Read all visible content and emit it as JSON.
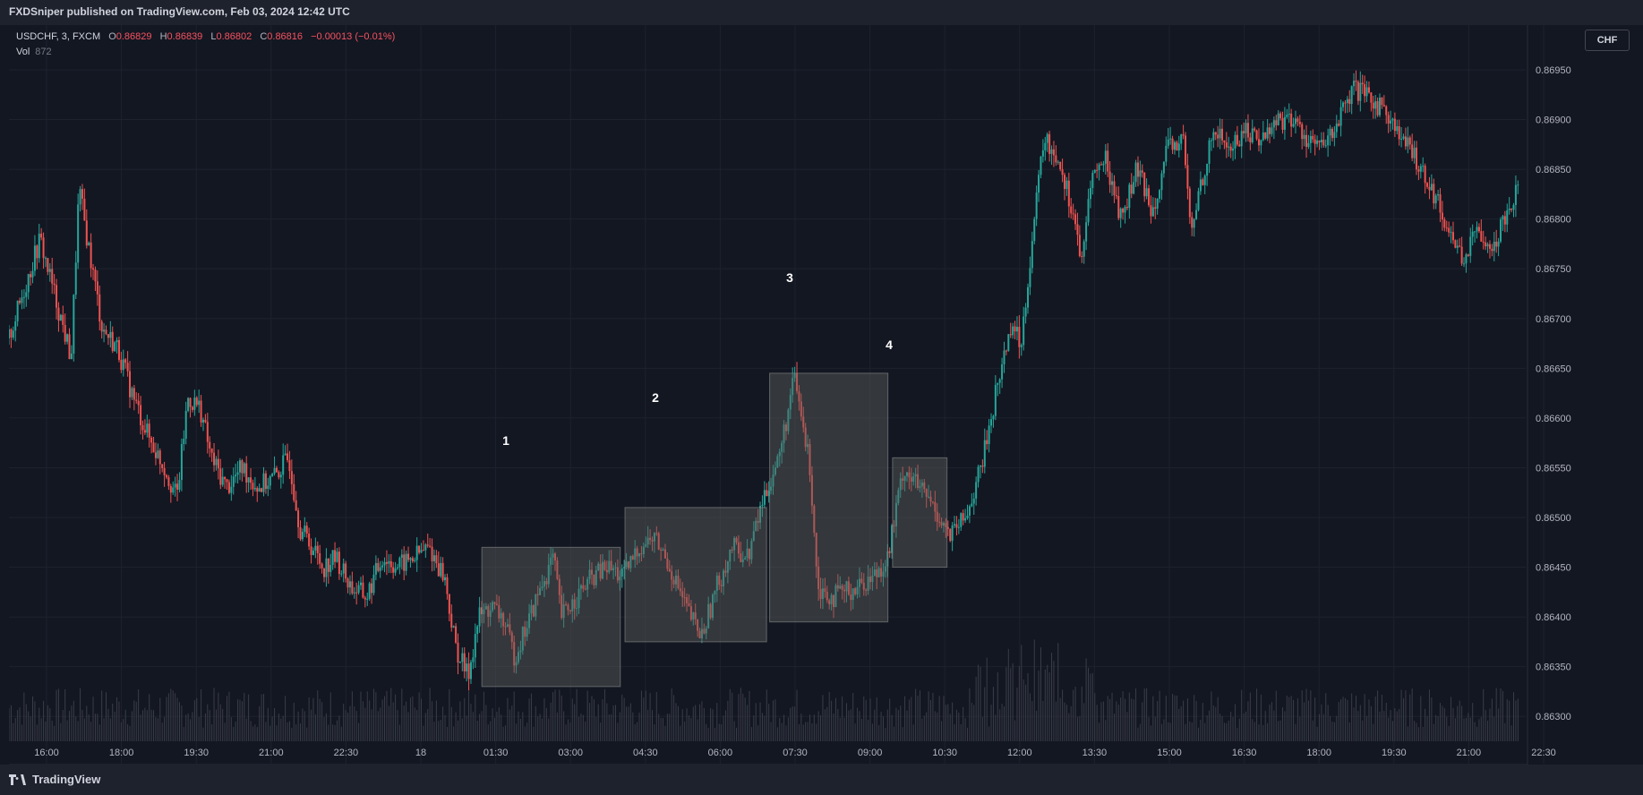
{
  "header": {
    "published_by": "FXDSniper published on TradingView.com, Feb 03, 2024 12:42 UTC"
  },
  "legend": {
    "symbol": "USDCHF, 3, FXCM",
    "open_label": "O",
    "open": "0.86829",
    "high_label": "H",
    "high": "0.86839",
    "low_label": "L",
    "low": "0.86802",
    "close_label": "C",
    "close": "0.86816",
    "change": "−0.00013 (−0.01%)",
    "vol_label": "Vol",
    "vol_value": "872"
  },
  "currency_button": "CHF",
  "footer": {
    "brand": "TradingView"
  },
  "colors": {
    "up": "#26a69a",
    "down": "#ef5350",
    "background": "#131722",
    "box": "#5d5f5d",
    "grid": "#1e222d"
  },
  "chart_data": {
    "type": "candlestick",
    "symbol": "USDCHF",
    "timeframe": "3",
    "x_ticks": [
      "16:00",
      "18:00",
      "19:30",
      "21:00",
      "22:30",
      "18",
      "01:30",
      "03:00",
      "04:30",
      "06:00",
      "07:30",
      "09:00",
      "10:30",
      "12:00",
      "13:30",
      "15:00",
      "16:30",
      "18:00",
      "19:30",
      "21:00",
      "22:30"
    ],
    "y_ticks": [
      "0.86950",
      "0.86900",
      "0.86850",
      "0.86800",
      "0.86750",
      "0.86700",
      "0.86650",
      "0.86600",
      "0.86550",
      "0.86500",
      "0.86450",
      "0.86400",
      "0.86350",
      "0.86300"
    ],
    "ylim": [
      0.86275,
      0.86995
    ],
    "price_path": [
      [
        0,
        0.8668
      ],
      [
        2,
        0.8678
      ],
      [
        4,
        0.8666
      ],
      [
        4.5,
        0.8683
      ],
      [
        6,
        0.8669
      ],
      [
        7,
        0.8667
      ],
      [
        8,
        0.8662
      ],
      [
        9,
        0.8658
      ],
      [
        10,
        0.8655
      ],
      [
        10.8,
        0.8652
      ],
      [
        11.5,
        0.8662
      ],
      [
        12.3,
        0.8661
      ],
      [
        13,
        0.8656
      ],
      [
        14,
        0.8653
      ],
      [
        15,
        0.8655
      ],
      [
        16,
        0.8653
      ],
      [
        17,
        0.8654
      ],
      [
        18,
        0.8656
      ],
      [
        18.7,
        0.8649
      ],
      [
        19.5,
        0.8647
      ],
      [
        20.2,
        0.8645
      ],
      [
        21,
        0.8646
      ],
      [
        22,
        0.8643
      ],
      [
        23,
        0.8642
      ],
      [
        24,
        0.8646
      ],
      [
        25,
        0.8645
      ],
      [
        26,
        0.8646
      ],
      [
        27,
        0.8647
      ],
      [
        28,
        0.8644
      ],
      [
        28.7,
        0.8637
      ],
      [
        29.5,
        0.8634
      ],
      [
        30.2,
        0.864
      ],
      [
        31,
        0.8641
      ],
      [
        31.7,
        0.864
      ],
      [
        32.5,
        0.8636
      ],
      [
        33.5,
        0.864
      ],
      [
        34.2,
        0.8643
      ],
      [
        35,
        0.8646
      ],
      [
        35.5,
        0.864
      ],
      [
        36.5,
        0.8642
      ],
      [
        37.5,
        0.8644
      ],
      [
        38.5,
        0.8645
      ],
      [
        39.5,
        0.8644
      ],
      [
        40.5,
        0.8647
      ],
      [
        41.5,
        0.8648
      ],
      [
        42.5,
        0.8645
      ],
      [
        43.5,
        0.8641
      ],
      [
        44.5,
        0.8638
      ],
      [
        45.5,
        0.8643
      ],
      [
        46.5,
        0.8647
      ],
      [
        47.5,
        0.8646
      ],
      [
        48.5,
        0.8652
      ],
      [
        49.5,
        0.8656
      ],
      [
        50.5,
        0.8664
      ],
      [
        51.5,
        0.8655
      ],
      [
        52,
        0.8643
      ],
      [
        53,
        0.8642
      ],
      [
        54.5,
        0.8643
      ],
      [
        55.5,
        0.8644
      ],
      [
        56.5,
        0.8646
      ],
      [
        57.5,
        0.8655
      ],
      [
        58.5,
        0.8653
      ],
      [
        59.5,
        0.8651
      ],
      [
        60.5,
        0.8648
      ],
      [
        61.5,
        0.865
      ],
      [
        62.5,
        0.8655
      ],
      [
        63.5,
        0.8663
      ],
      [
        64.5,
        0.867
      ],
      [
        65,
        0.8667
      ],
      [
        65.5,
        0.8674
      ],
      [
        66.5,
        0.8688
      ],
      [
        67.5,
        0.8686
      ],
      [
        68.5,
        0.868
      ],
      [
        69,
        0.8675
      ],
      [
        69.5,
        0.8684
      ],
      [
        70.5,
        0.8686
      ],
      [
        71.5,
        0.868
      ],
      [
        72.5,
        0.8685
      ],
      [
        73.5,
        0.8681
      ],
      [
        74.5,
        0.8687
      ],
      [
        75.5,
        0.8688
      ],
      [
        76,
        0.8678
      ],
      [
        76.5,
        0.8683
      ],
      [
        77.5,
        0.8689
      ],
      [
        78.5,
        0.8687
      ],
      [
        79.5,
        0.8689
      ],
      [
        80.5,
        0.8688
      ],
      [
        81.5,
        0.869
      ],
      [
        82.5,
        0.869
      ],
      [
        83.5,
        0.8688
      ],
      [
        84.5,
        0.8687
      ],
      [
        85.5,
        0.869
      ],
      [
        86.5,
        0.8693
      ],
      [
        87.5,
        0.8692
      ],
      [
        88.5,
        0.8691
      ],
      [
        89.5,
        0.8688
      ],
      [
        90.5,
        0.8686
      ],
      [
        91.5,
        0.8683
      ],
      [
        92.5,
        0.8679
      ],
      [
        93.5,
        0.8676
      ],
      [
        94.5,
        0.8679
      ],
      [
        95.5,
        0.8677
      ],
      [
        96,
        0.868
      ],
      [
        97,
        0.8683
      ]
    ],
    "boxes": [
      {
        "label": "1",
        "t0": 30.4,
        "t1": 39.3,
        "p0": 0.8647,
        "p1": 0.8633
      },
      {
        "label": "2",
        "t0": 39.6,
        "t1": 48.7,
        "p0": 0.8651,
        "p1": 0.86375
      },
      {
        "label": "3",
        "t0": 48.9,
        "t1": 56.5,
        "p0": 0.86645,
        "p1": 0.86395
      },
      {
        "label": "4",
        "t0": 56.8,
        "t1": 60.3,
        "p0": 0.8656,
        "p1": 0.8645
      }
    ]
  }
}
